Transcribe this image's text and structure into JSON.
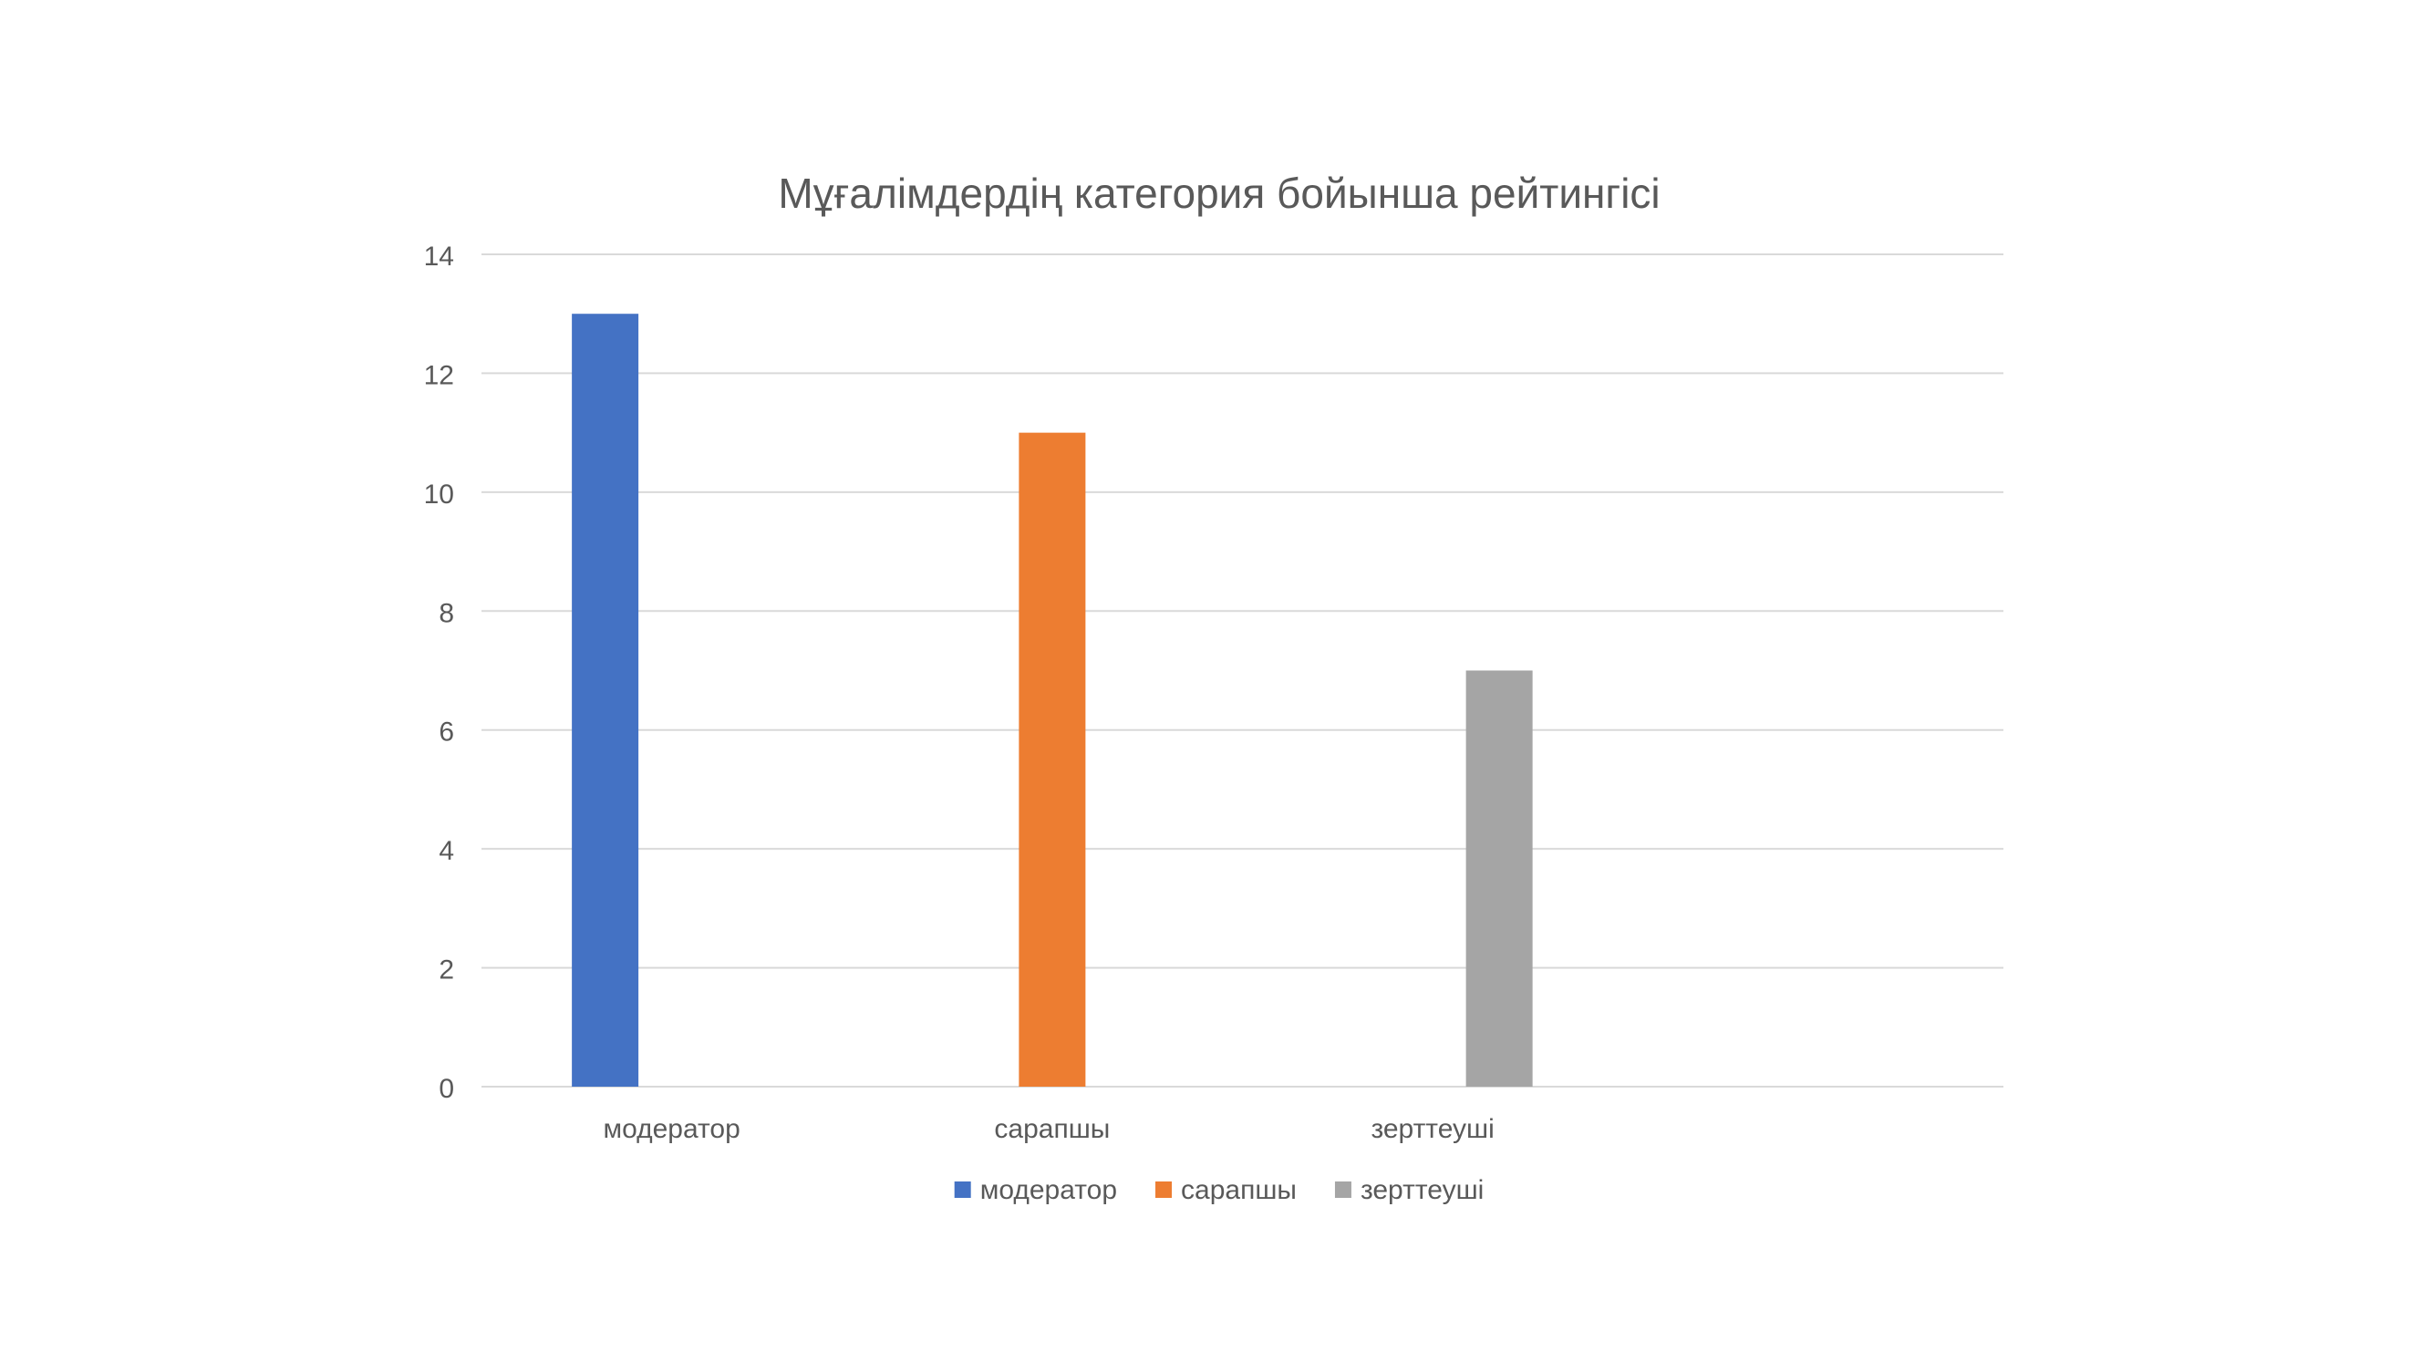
{
  "chart_data": {
    "type": "bar",
    "title": "Мұғалімдердің категория бойынша рейтингісі",
    "xlabel": "",
    "ylabel": "",
    "categories": [
      "модератор",
      "сарапшы",
      "зерттеуші"
    ],
    "series": [
      {
        "name": "модератор",
        "values": [
          13,
          null,
          null
        ],
        "color": "#4472C4"
      },
      {
        "name": "сарапшы",
        "values": [
          null,
          11,
          null
        ],
        "color": "#ED7D31"
      },
      {
        "name": "зерттеуші",
        "values": [
          null,
          null,
          7
        ],
        "color": "#A5A5A5"
      }
    ],
    "ylim": [
      0,
      14
    ],
    "yticks": [
      0,
      2,
      4,
      6,
      8,
      10,
      12,
      14
    ],
    "grid": true,
    "legend_position": "bottom"
  },
  "colors": {
    "title": "#595959",
    "axis_text": "#595959",
    "gridline": "#D9D9D9"
  }
}
